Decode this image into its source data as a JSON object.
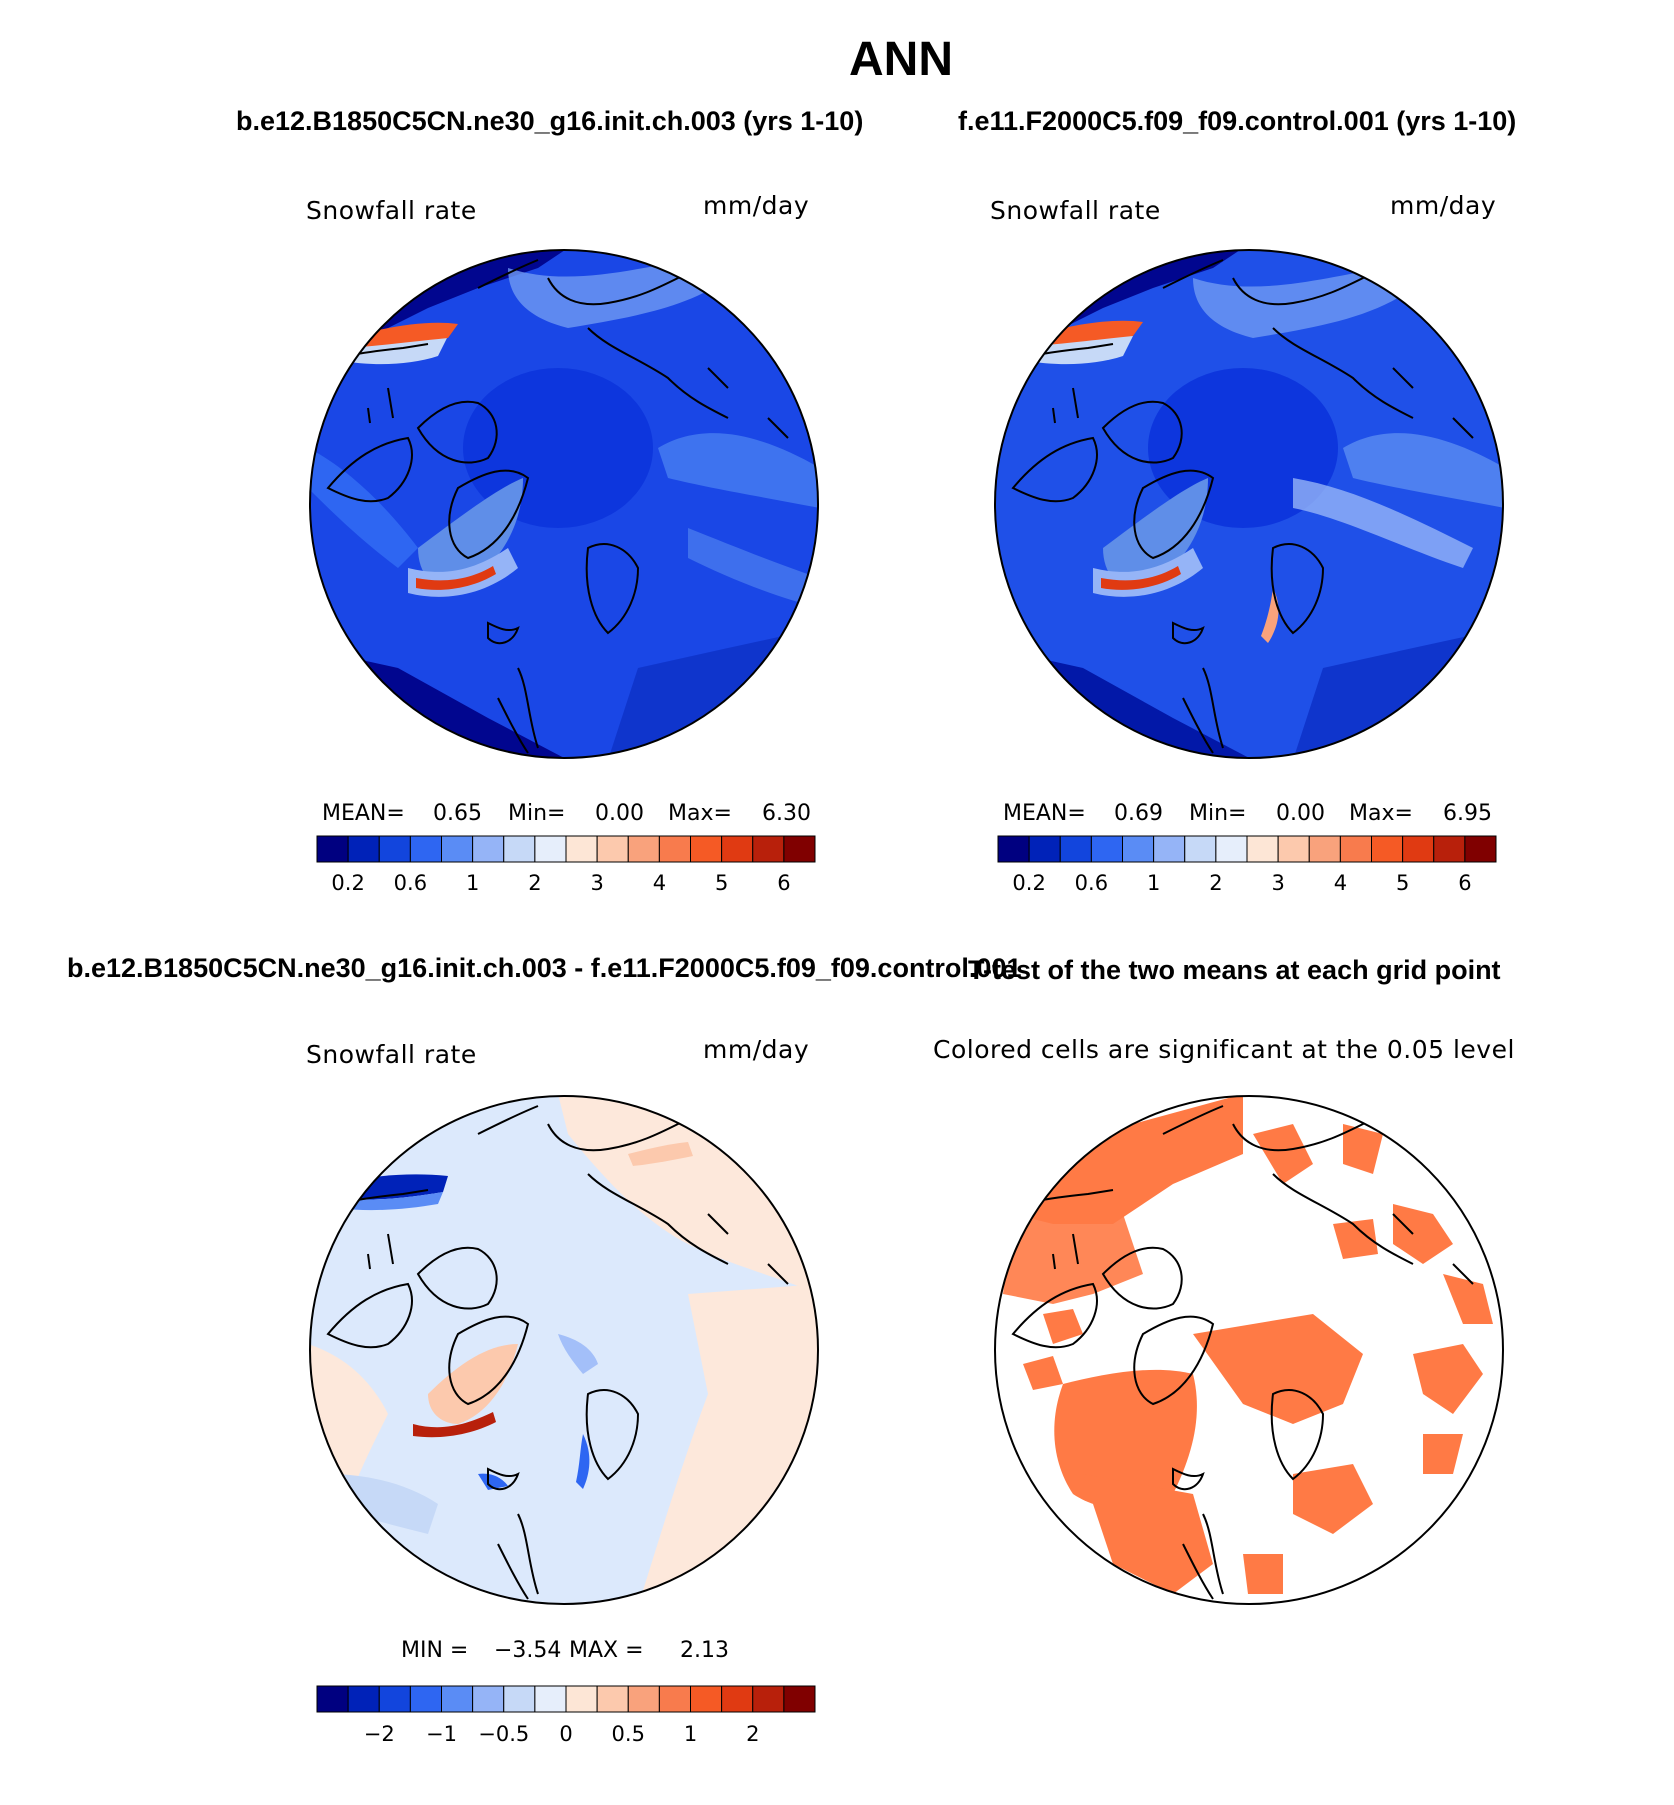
{
  "page": {
    "title": "ANN"
  },
  "panels": {
    "case1": {
      "case_title": "b.e12.B1850C5CN.ne30_g16.init.ch.003 (yrs 1-10)",
      "field_label": "Snowfall rate",
      "units": "mm/day",
      "stats": {
        "mean_label": "MEAN=",
        "mean": "0.65",
        "min_label": "Min=",
        "min": "0.00",
        "max_label": "Max=",
        "max": "6.30"
      }
    },
    "case2": {
      "case_title": "f.e11.F2000C5.f09_f09.control.001 (yrs 1-10)",
      "field_label": "Snowfall rate",
      "units": "mm/day",
      "stats": {
        "mean_label": "MEAN=",
        "mean": "0.69",
        "min_label": "Min=",
        "min": "0.00",
        "max_label": "Max=",
        "max": "6.95"
      }
    },
    "diff": {
      "case_title": "b.e12.B1850C5CN.ne30_g16.init.ch.003 - f.e11.F2000C5.f09_f09.control.001",
      "field_label": "Snowfall rate",
      "units": "mm/day",
      "stats": {
        "min_label": "MIN =",
        "min": "−3.54",
        "max_label": "MAX =",
        "max": "2.13"
      }
    },
    "ttest": {
      "case_title": "T-test of the two means at each grid point",
      "note": "Colored cells are significant at the 0.05 level",
      "color": "#ff7a45"
    }
  },
  "colorbars": {
    "abs": {
      "colors": [
        "#000080",
        "#0022b8",
        "#1245dd",
        "#2e66f2",
        "#5a8cf5",
        "#95b4f7",
        "#c6d9f7",
        "#e6eefb",
        "#fde6d6",
        "#fcc9ad",
        "#f9a27c",
        "#f87b4d",
        "#f55a25",
        "#e03a12",
        "#b8200b",
        "#800000"
      ],
      "labels": [
        "0.2",
        "0.6",
        "1",
        "2",
        "3",
        "4",
        "5",
        "6"
      ]
    },
    "diff": {
      "colors": [
        "#000080",
        "#0022b8",
        "#1245dd",
        "#2e66f2",
        "#5a8cf5",
        "#95b4f7",
        "#c6d9f7",
        "#e6eefb",
        "#fde6d6",
        "#fcc9ad",
        "#f9a27c",
        "#f87b4d",
        "#f55a25",
        "#e03a12",
        "#b8200b",
        "#800000"
      ],
      "labels": [
        "−2",
        "−1",
        "−0.5",
        "0",
        "0.5",
        "1",
        "2"
      ]
    }
  },
  "map_colors": {
    "ocean_base": "#1a47e6",
    "pole_area": "#0d36dd",
    "dark_edge": "#01068f",
    "light_band": "#6f9af2",
    "mid_band": "#3e73ef",
    "greenland": "#5f8ee8",
    "max_band": "#f55a25",
    "diff_base": "#dce9fc",
    "diff_pos": "#fde8db",
    "coast": "#000000"
  }
}
